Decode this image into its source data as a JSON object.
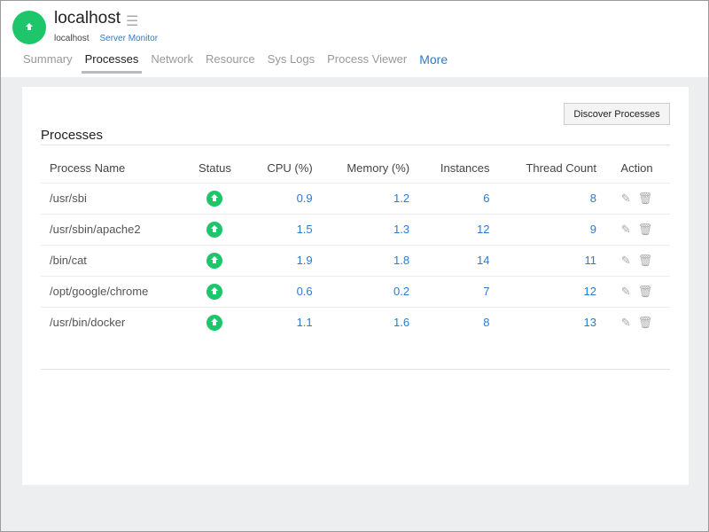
{
  "header": {
    "title": "localhost",
    "host": "localhost",
    "monitor_type": "Server Monitor",
    "status_color": "#1ec66b"
  },
  "tabs": [
    {
      "label": "Summary"
    },
    {
      "label": "Processes",
      "active": true
    },
    {
      "label": "Network"
    },
    {
      "label": "Resource"
    },
    {
      "label": "Sys Logs"
    },
    {
      "label": "Process Viewer"
    },
    {
      "label": "More"
    }
  ],
  "panel": {
    "title": "Processes",
    "discover_label": "Discover Processes"
  },
  "table": {
    "columns": [
      "Process Name",
      "Status",
      "CPU (%)",
      "Memory (%)",
      "Instances",
      "Thread Count",
      "Action"
    ],
    "rows": [
      {
        "name": "/usr/sbi",
        "status": "up",
        "cpu": "0.9",
        "memory": "1.2",
        "instances": "6",
        "threads": "8"
      },
      {
        "name": "/usr/sbin/apache2",
        "status": "up",
        "cpu": "1.5",
        "memory": "1.3",
        "instances": "12",
        "threads": "9"
      },
      {
        "name": "/bin/cat",
        "status": "up",
        "cpu": "1.9",
        "memory": "1.8",
        "instances": "14",
        "threads": "11"
      },
      {
        "name": "/opt/google/chrome",
        "status": "up",
        "cpu": "0.6",
        "memory": "0.2",
        "instances": "7",
        "threads": "12"
      },
      {
        "name": "/usr/bin/docker",
        "status": "up",
        "cpu": "1.1",
        "memory": "1.6",
        "instances": "8",
        "threads": "13"
      }
    ]
  }
}
